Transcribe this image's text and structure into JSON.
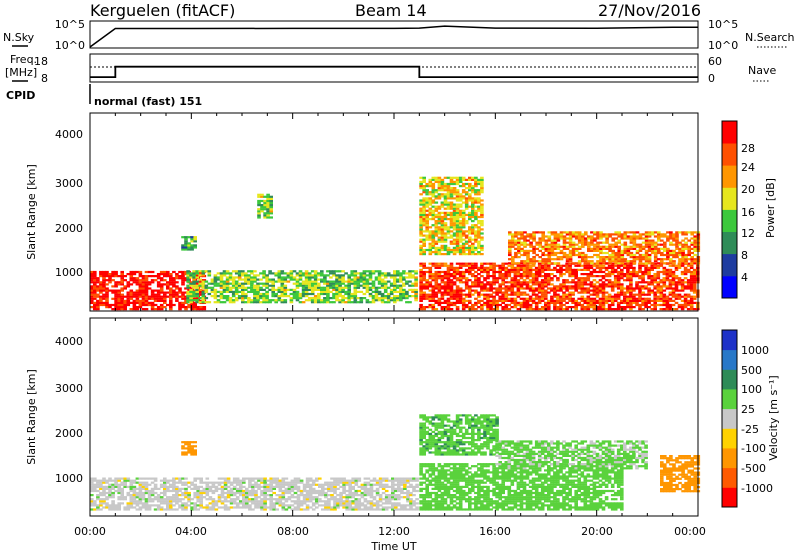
{
  "header": {
    "station": "Kerguelen (fitACF)",
    "beam": "Beam 14",
    "date": "27/Nov/2016"
  },
  "nsky_panel": {
    "left_label": "N.Sky",
    "right_label": "N.Search",
    "left_ticks": [
      "10^5",
      "10^0"
    ],
    "right_ticks": [
      "10^5",
      "10^0"
    ]
  },
  "freq_panel": {
    "left_label_1": "Freq.",
    "left_label_2": "[MHz]",
    "right_label": "Nave",
    "left_ticks": [
      "18",
      "8"
    ],
    "right_ticks": [
      "60",
      "0"
    ],
    "cpid_label": "CPID",
    "cpid_text": "normal (fast) 151"
  },
  "power_panel": {
    "ylabel": "Slant Range [km]",
    "yticks": [
      "4000",
      "3000",
      "2000",
      "1000"
    ],
    "colorbar_label": "Power [dB]",
    "colorbar_ticks": [
      "28",
      "24",
      "20",
      "16",
      "12",
      "8",
      "4"
    ],
    "colors": [
      "#0000ff",
      "#1e3ca0",
      "#2f8c58",
      "#3cc83c",
      "#e6e61e",
      "#ff9600",
      "#ff5000",
      "#ff0000"
    ]
  },
  "velocity_panel": {
    "ylabel": "Slant Range [km]",
    "yticks": [
      "4000",
      "3000",
      "2000",
      "1000"
    ],
    "colorbar_label": "Velocity [m s⁻¹]",
    "colorbar_ticks": [
      "1000",
      "500",
      "100",
      "25",
      "-25",
      "-100",
      "-500",
      "-1000"
    ],
    "colors": [
      "#1e32c8",
      "#2878c8",
      "#2e8b57",
      "#5ad23c",
      "#c8c8c8",
      "#ffd200",
      "#ff9600",
      "#ff5a00",
      "#ff0000"
    ]
  },
  "xaxis": {
    "label": "Time UT",
    "ticks": [
      "00:00",
      "04:00",
      "08:00",
      "12:00",
      "16:00",
      "20:00",
      "00:00"
    ]
  },
  "chart_data": [
    {
      "type": "line",
      "title": "N.Sky / N.Search",
      "x": [
        "00:00",
        "01:00",
        "04:00",
        "08:00",
        "12:00",
        "13:00",
        "14:00",
        "16:00",
        "20:00",
        "23:00",
        "24:00"
      ],
      "series": [
        {
          "name": "N.Sky",
          "values": [
            0,
            5000,
            5000,
            5200,
            5300,
            6000,
            15000,
            6000,
            5500,
            9000,
            9000
          ]
        }
      ],
      "ylim": [
        1,
        100000
      ],
      "yscale": "log"
    },
    {
      "type": "line",
      "title": "Freq. / Nave",
      "x": [
        "00:00",
        "01:00",
        "13:00",
        "24:00"
      ],
      "series": [
        {
          "name": "Freq. [MHz]",
          "values": [
            9.5,
            13.5,
            9.5,
            9.5
          ]
        },
        {
          "name": "Nave",
          "values": [
            40,
            40,
            40,
            40
          ]
        }
      ],
      "ylim": [
        8,
        18
      ]
    },
    {
      "type": "heatmap",
      "title": "Power [dB]",
      "xlabel": "Time UT",
      "ylabel": "Slant Range [km]",
      "xlim": [
        "00:00",
        "24:00"
      ],
      "ylim": [
        180,
        4500
      ],
      "zlim": [
        0,
        30
      ],
      "regions": [
        {
          "t": [
            0,
            4.5
          ],
          "r": [
            200,
            1050
          ],
          "value": 28
        },
        {
          "t": [
            3.8,
            12.9
          ],
          "r": [
            350,
            1050
          ],
          "value": 14
        },
        {
          "t": [
            3.6,
            4.1
          ],
          "r": [
            1500,
            1800
          ],
          "value": 12
        },
        {
          "t": [
            6.6,
            7.2
          ],
          "r": [
            2200,
            2700
          ],
          "value": 14
        },
        {
          "t": [
            13.0,
            15.5
          ],
          "r": [
            1400,
            3100
          ],
          "value": 18
        },
        {
          "t": [
            13.0,
            24.0
          ],
          "r": [
            200,
            1200
          ],
          "value": 26
        },
        {
          "t": [
            16.5,
            24.0
          ],
          "r": [
            1200,
            1900
          ],
          "value": 22
        }
      ]
    },
    {
      "type": "heatmap",
      "title": "Velocity [m s⁻¹]",
      "xlabel": "Time UT",
      "ylabel": "Slant Range [km]",
      "xlim": [
        "00:00",
        "24:00"
      ],
      "ylim": [
        180,
        4500
      ],
      "zlim": [
        -1000,
        1000
      ],
      "regions": [
        {
          "t": [
            0,
            12.9
          ],
          "r": [
            300,
            1000
          ],
          "value": 0
        },
        {
          "t": [
            3.6,
            4.1
          ],
          "r": [
            1500,
            1800
          ],
          "value": -300
        },
        {
          "t": [
            13.0,
            16.0
          ],
          "r": [
            1500,
            2400
          ],
          "value": 80
        },
        {
          "t": [
            13.0,
            21.0
          ],
          "r": [
            300,
            1300
          ],
          "value": 60
        },
        {
          "t": [
            16.0,
            22.0
          ],
          "r": [
            1200,
            1800
          ],
          "value": 40
        },
        {
          "t": [
            22.5,
            24.0
          ],
          "r": [
            700,
            1500
          ],
          "value": -400
        }
      ]
    }
  ]
}
